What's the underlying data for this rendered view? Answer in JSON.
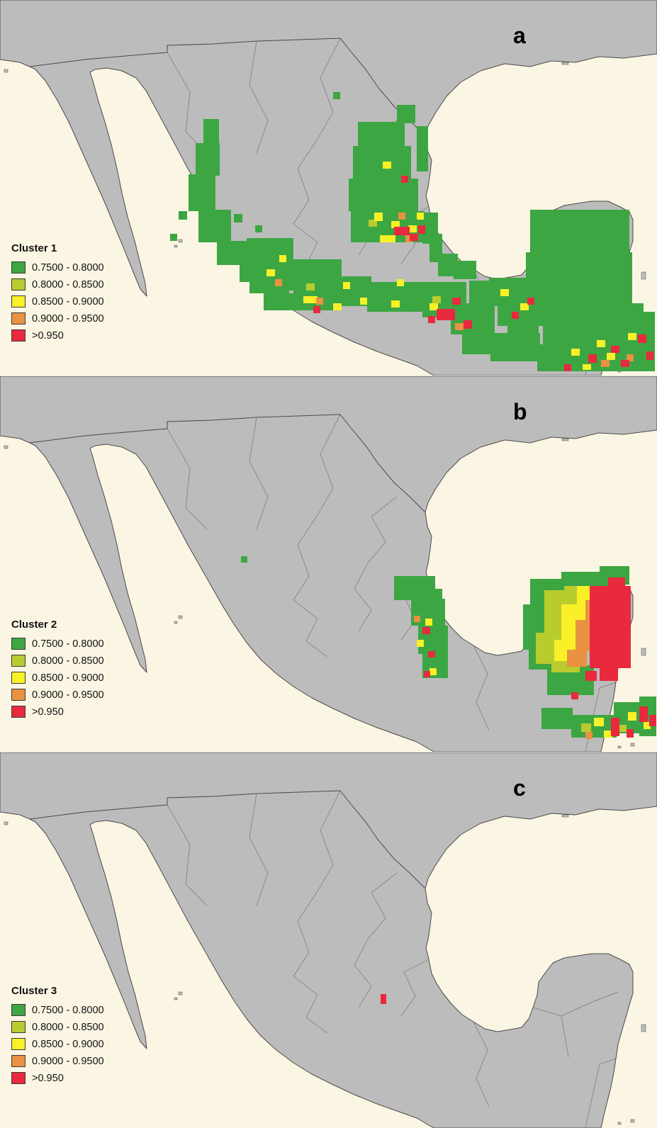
{
  "colors": {
    "ocean": "#fbf5e3",
    "land": "#bcbcbc",
    "outline": "#4a4a4a",
    "g": "#3ca643",
    "l": "#b8cc2e",
    "y": "#f9f027",
    "o": "#ea9142",
    "r": "#e8293e"
  },
  "legend_ranges": [
    {
      "label": "0.7500 - 0.8000",
      "color": "g"
    },
    {
      "label": "0.8000 - 0.8500",
      "color": "l"
    },
    {
      "label": "0.8500 - 0.9000",
      "color": "y"
    },
    {
      "label": "0.9000 - 0.9500",
      "color": "o"
    },
    {
      "label": ">0.950",
      "color": "r"
    }
  ],
  "panels": [
    {
      "letter": "a",
      "cluster": "Cluster 1",
      "cells": [
        [
          287,
          168,
          22,
          36,
          "g"
        ],
        [
          276,
          202,
          34,
          46,
          "g"
        ],
        [
          266,
          246,
          38,
          52,
          "g"
        ],
        [
          280,
          296,
          46,
          46,
          "g"
        ],
        [
          306,
          340,
          52,
          34,
          "g"
        ],
        [
          338,
          372,
          48,
          26,
          "g"
        ],
        [
          252,
          298,
          12,
          12,
          "g"
        ],
        [
          240,
          330,
          10,
          10,
          "g"
        ],
        [
          330,
          302,
          12,
          12,
          "g"
        ],
        [
          360,
          318,
          10,
          10,
          "g"
        ],
        [
          470,
          130,
          10,
          10,
          "g"
        ],
        [
          505,
          172,
          66,
          34,
          "g"
        ],
        [
          498,
          206,
          82,
          46,
          "g"
        ],
        [
          492,
          252,
          98,
          46,
          "g"
        ],
        [
          495,
          298,
          104,
          44,
          "g"
        ],
        [
          560,
          148,
          26,
          26,
          "g"
        ],
        [
          588,
          178,
          16,
          64,
          "g"
        ],
        [
          596,
          300,
          22,
          44,
          "g"
        ],
        [
          606,
          330,
          18,
          40,
          "g"
        ],
        [
          618,
          358,
          28,
          32,
          "g"
        ],
        [
          640,
          368,
          32,
          26,
          "g"
        ],
        [
          348,
          336,
          66,
          44,
          "g"
        ],
        [
          352,
          378,
          56,
          36,
          "g"
        ],
        [
          398,
          366,
          84,
          44,
          "g"
        ],
        [
          452,
          390,
          72,
          42,
          "g"
        ],
        [
          518,
          398,
          84,
          42,
          "g"
        ],
        [
          596,
          398,
          62,
          50,
          "g"
        ],
        [
          636,
          428,
          62,
          44,
          "g"
        ],
        [
          662,
          396,
          44,
          36,
          "g"
        ],
        [
          414,
          410,
          60,
          28,
          "g"
        ],
        [
          372,
          414,
          44,
          24,
          "g"
        ],
        [
          690,
          392,
          56,
          36,
          "g"
        ],
        [
          702,
          424,
          64,
          36,
          "g"
        ],
        [
          742,
          398,
          40,
          28,
          "g"
        ],
        [
          716,
          456,
          44,
          20,
          "g"
        ],
        [
          652,
          470,
          44,
          30,
          "g"
        ],
        [
          692,
          470,
          70,
          40,
          "g"
        ],
        [
          758,
          486,
          52,
          38,
          "g"
        ],
        [
          748,
          296,
          140,
          64,
          "g"
        ],
        [
          742,
          356,
          150,
          74,
          "g"
        ],
        [
          766,
          428,
          142,
          58,
          "g"
        ],
        [
          806,
          484,
          118,
          40,
          "g"
        ],
        [
          886,
          440,
          38,
          50,
          "g"
        ],
        [
          520,
          310,
          12,
          10,
          "l"
        ],
        [
          432,
          400,
          12,
          10,
          "l"
        ],
        [
          610,
          418,
          12,
          10,
          "l"
        ],
        [
          540,
          228,
          12,
          10,
          "y"
        ],
        [
          528,
          300,
          12,
          12,
          "y"
        ],
        [
          552,
          312,
          12,
          10,
          "y"
        ],
        [
          576,
          318,
          12,
          10,
          "y"
        ],
        [
          588,
          300,
          10,
          10,
          "y"
        ],
        [
          536,
          332,
          22,
          10,
          "y"
        ],
        [
          376,
          380,
          12,
          10,
          "y"
        ],
        [
          394,
          360,
          10,
          10,
          "y"
        ],
        [
          428,
          418,
          20,
          10,
          "y"
        ],
        [
          470,
          428,
          12,
          10,
          "y"
        ],
        [
          508,
          420,
          10,
          10,
          "y"
        ],
        [
          552,
          424,
          12,
          10,
          "y"
        ],
        [
          606,
          428,
          12,
          10,
          "y"
        ],
        [
          560,
          394,
          10,
          10,
          "y"
        ],
        [
          484,
          398,
          10,
          10,
          "y"
        ],
        [
          706,
          408,
          12,
          10,
          "y"
        ],
        [
          734,
          428,
          12,
          10,
          "y"
        ],
        [
          806,
          492,
          12,
          10,
          "y"
        ],
        [
          842,
          480,
          12,
          10,
          "y"
        ],
        [
          856,
          498,
          12,
          10,
          "y"
        ],
        [
          886,
          470,
          12,
          10,
          "y"
        ],
        [
          822,
          514,
          12,
          8,
          "y"
        ],
        [
          562,
          300,
          10,
          10,
          "o"
        ],
        [
          572,
          332,
          10,
          10,
          "o"
        ],
        [
          388,
          394,
          10,
          10,
          "o"
        ],
        [
          446,
          420,
          10,
          10,
          "o"
        ],
        [
          642,
          456,
          12,
          10,
          "o"
        ],
        [
          884,
          500,
          10,
          10,
          "o"
        ],
        [
          848,
          508,
          12,
          10,
          "o"
        ],
        [
          556,
          320,
          22,
          12,
          "r"
        ],
        [
          578,
          330,
          12,
          10,
          "r"
        ],
        [
          566,
          248,
          10,
          10,
          "r"
        ],
        [
          590,
          318,
          10,
          12,
          "r"
        ],
        [
          442,
          432,
          10,
          10,
          "r"
        ],
        [
          616,
          436,
          26,
          16,
          "r"
        ],
        [
          638,
          420,
          12,
          10,
          "r"
        ],
        [
          654,
          452,
          12,
          12,
          "r"
        ],
        [
          604,
          446,
          10,
          10,
          "r"
        ],
        [
          722,
          440,
          10,
          10,
          "r"
        ],
        [
          744,
          420,
          10,
          10,
          "r"
        ],
        [
          830,
          500,
          12,
          12,
          "r"
        ],
        [
          862,
          488,
          12,
          10,
          "r"
        ],
        [
          900,
          472,
          12,
          12,
          "r"
        ],
        [
          876,
          508,
          12,
          10,
          "r"
        ],
        [
          912,
          496,
          10,
          12,
          "r"
        ],
        [
          796,
          514,
          10,
          10,
          "r"
        ]
      ]
    },
    {
      "letter": "b",
      "cluster": "Cluster 2",
      "cells": [
        [
          340,
          254,
          9,
          9,
          "g"
        ],
        [
          556,
          282,
          58,
          34,
          "g"
        ],
        [
          580,
          314,
          48,
          38,
          "g"
        ],
        [
          590,
          352,
          42,
          40,
          "g"
        ],
        [
          596,
          392,
          36,
          34,
          "g"
        ],
        [
          608,
          300,
          16,
          14,
          "g"
        ],
        [
          738,
          322,
          44,
          64,
          "g"
        ],
        [
          748,
          286,
          58,
          44,
          "g"
        ],
        [
          792,
          276,
          74,
          26,
          "g"
        ],
        [
          846,
          268,
          42,
          26,
          "g"
        ],
        [
          746,
          380,
          36,
          34,
          "g"
        ],
        [
          772,
          408,
          66,
          42,
          "g"
        ],
        [
          798,
          434,
          12,
          10,
          "g"
        ],
        [
          764,
          468,
          44,
          30,
          "g"
        ],
        [
          806,
          478,
          64,
          32,
          "g"
        ],
        [
          866,
          460,
          52,
          44,
          "g"
        ],
        [
          902,
          452,
          24,
          56,
          "g"
        ],
        [
          768,
          302,
          52,
          64,
          "l"
        ],
        [
          756,
          362,
          52,
          44,
          "l"
        ],
        [
          796,
          296,
          30,
          30,
          "l"
        ],
        [
          778,
          396,
          40,
          22,
          "l"
        ],
        [
          820,
          490,
          14,
          12,
          "l"
        ],
        [
          872,
          492,
          12,
          10,
          "l"
        ],
        [
          600,
          342,
          10,
          10,
          "y"
        ],
        [
          588,
          372,
          10,
          10,
          "y"
        ],
        [
          606,
          412,
          10,
          10,
          "y"
        ],
        [
          792,
          322,
          42,
          52,
          "y"
        ],
        [
          782,
          372,
          38,
          30,
          "y"
        ],
        [
          814,
          296,
          24,
          28,
          "y"
        ],
        [
          838,
          482,
          14,
          12,
          "y"
        ],
        [
          886,
          474,
          12,
          12,
          "y"
        ],
        [
          852,
          500,
          12,
          10,
          "y"
        ],
        [
          908,
          488,
          10,
          10,
          "y"
        ],
        [
          584,
          338,
          9,
          9,
          "o"
        ],
        [
          812,
          344,
          32,
          44,
          "o"
        ],
        [
          800,
          386,
          28,
          24,
          "o"
        ],
        [
          826,
          316,
          22,
          30,
          "o"
        ],
        [
          826,
          502,
          10,
          10,
          "o"
        ],
        [
          596,
          354,
          11,
          10,
          "r"
        ],
        [
          604,
          388,
          10,
          9,
          "r"
        ],
        [
          598,
          416,
          9,
          9,
          "r"
        ],
        [
          832,
          296,
          58,
          116,
          "r"
        ],
        [
          846,
          408,
          26,
          22,
          "r"
        ],
        [
          826,
          416,
          16,
          14,
          "r"
        ],
        [
          858,
          284,
          24,
          16,
          "r"
        ],
        [
          806,
          446,
          10,
          10,
          "r"
        ],
        [
          862,
          482,
          12,
          26,
          "r"
        ],
        [
          902,
          466,
          12,
          22,
          "r"
        ],
        [
          884,
          498,
          10,
          12,
          "r"
        ],
        [
          916,
          478,
          10,
          16,
          "r"
        ]
      ]
    },
    {
      "letter": "c",
      "cluster": "Cluster 3",
      "cells": [
        [
          537,
          341,
          8,
          14,
          "r"
        ]
      ]
    }
  ]
}
